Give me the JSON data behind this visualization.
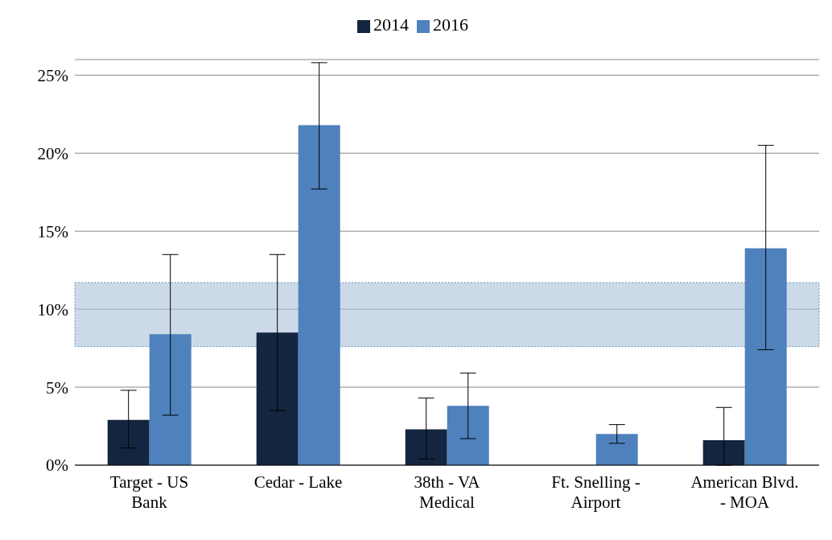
{
  "chart_data": {
    "type": "bar",
    "categories": [
      "Target - US Bank",
      "Cedar - Lake",
      "38th - VA Medical",
      "Ft. Snelling - Airport",
      "American Blvd. - MOA"
    ],
    "series": [
      {
        "name": "2014",
        "color": "#14253f",
        "values": [
          2.9,
          8.5,
          2.3,
          null,
          1.6
        ],
        "errors": [
          [
            1.1,
            4.8
          ],
          [
            3.5,
            13.5
          ],
          [
            0.4,
            4.3
          ],
          null,
          [
            0,
            3.7
          ]
        ]
      },
      {
        "name": "2016",
        "color": "#4f81bd",
        "values": [
          8.4,
          21.8,
          3.8,
          2.0,
          13.9
        ],
        "errors": [
          [
            3.2,
            13.5
          ],
          [
            17.7,
            25.8
          ],
          [
            1.7,
            5.9
          ],
          [
            1.4,
            2.6
          ],
          [
            7.4,
            20.5
          ]
        ]
      }
    ],
    "ylim": [
      0,
      26
    ],
    "yticks": [
      {
        "value": 0,
        "label": "0%"
      },
      {
        "value": 5,
        "label": "5%"
      },
      {
        "value": 10,
        "label": "10%"
      },
      {
        "value": 15,
        "label": "15%"
      },
      {
        "value": 20,
        "label": "20%"
      },
      {
        "value": 25,
        "label": "25%"
      }
    ],
    "grid": "y",
    "legend": "top",
    "bands": [
      {
        "axis": "y",
        "from": 7.6,
        "to": 11.7,
        "color": "#a9c0d8"
      }
    ]
  }
}
